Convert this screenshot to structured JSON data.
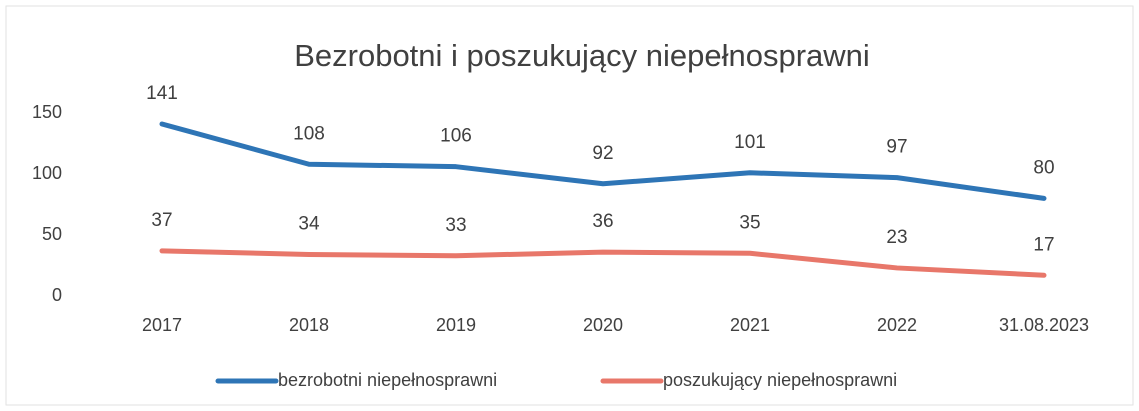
{
  "chart_data": {
    "type": "line",
    "title": "Bezrobotni i poszukujący  niepełnosprawni",
    "categories": [
      "2017",
      "2018",
      "2019",
      "2020",
      "2021",
      "2022",
      "31.08.2023"
    ],
    "series": [
      {
        "name": "bezrobotni niepełnosprawni",
        "color": "#2e75b6",
        "values": [
          141,
          108,
          106,
          92,
          101,
          97,
          80
        ]
      },
      {
        "name": "poszukujący niepełnosprawni",
        "color": "#e8776a",
        "values": [
          37,
          34,
          33,
          36,
          35,
          23,
          17
        ]
      }
    ],
    "ylim": [
      0,
      150
    ],
    "yticks": [
      0,
      50,
      100,
      150
    ],
    "grid": false,
    "legend": "bottom"
  }
}
